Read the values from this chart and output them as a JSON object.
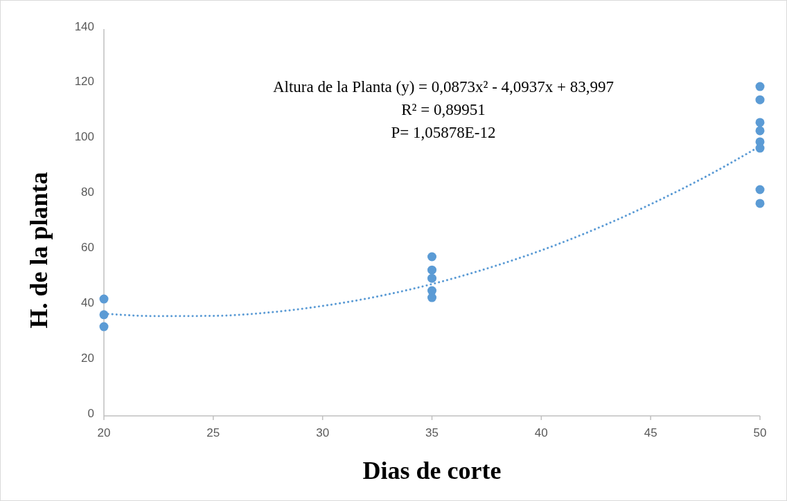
{
  "chart_data": {
    "type": "scatter",
    "xlabel": "Dias de corte",
    "ylabel": "H. de la planta",
    "xlim": [
      20,
      50
    ],
    "ylim": [
      0,
      140
    ],
    "xticks": [
      20,
      25,
      30,
      35,
      40,
      45,
      50
    ],
    "yticks": [
      0,
      20,
      40,
      60,
      80,
      100,
      120,
      140
    ],
    "grid": false,
    "marker": "circle",
    "annotations": [
      "Altura de la Planta (y) = 0,0873x² - 4,0937x + 83,997",
      "R² = 0,89951",
      "P=  1,05878E-12"
    ],
    "series": [
      {
        "type": "scatter",
        "color": "#5b9bd5",
        "x": [
          20,
          20,
          20,
          35,
          35,
          35,
          35,
          35,
          50,
          50,
          50,
          50,
          50,
          50,
          50,
          50
        ],
        "values": [
          42.3,
          36.6,
          32.3,
          57.6,
          52.8,
          49.8,
          45.3,
          42.8,
          119.2,
          114.4,
          106.2,
          103.2,
          99.2,
          96.9,
          81.9,
          76.9
        ]
      },
      {
        "type": "line",
        "color": "#5b9bd5",
        "line_style": "dotted",
        "marker": "none",
        "x": [
          20,
          22.5,
          25,
          27.5,
          30,
          32.5,
          35,
          37.5,
          40,
          42.5,
          45,
          47.5,
          50
        ],
        "values": [
          37,
          36.1,
          36.2,
          37.4,
          39.8,
          43.2,
          47.7,
          53.3,
          59.9,
          67.7,
          76.6,
          86.5,
          97.6
        ]
      }
    ]
  }
}
